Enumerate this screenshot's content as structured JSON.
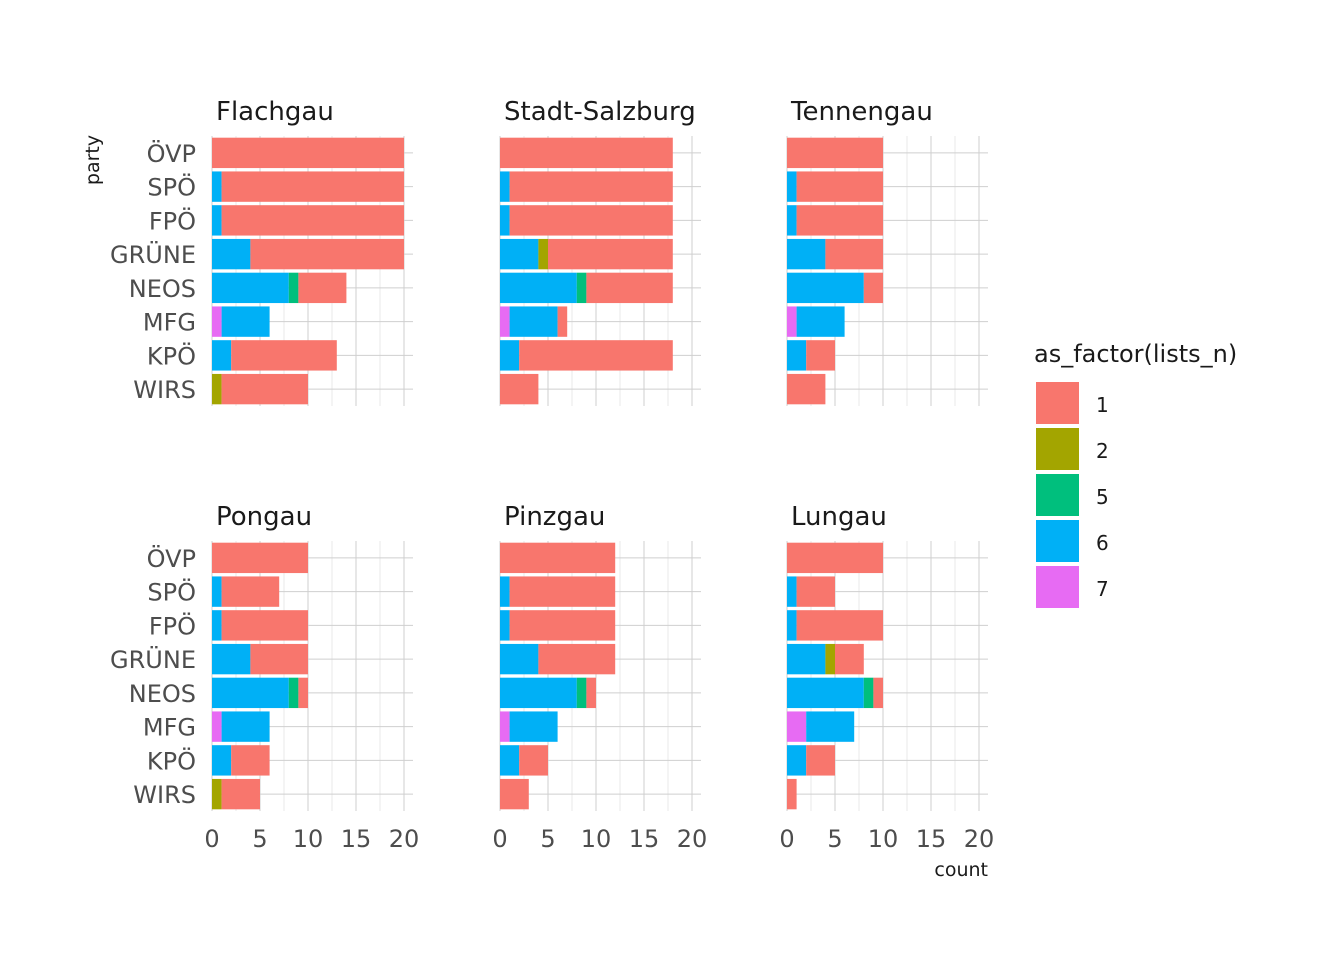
{
  "chart_data": {
    "type": "bar",
    "orientation": "horizontal",
    "stacked": true,
    "xlabel": "count",
    "ylabel": "party",
    "xlim": [
      0,
      21
    ],
    "xticks": [
      "0",
      "5",
      "10",
      "15",
      "20"
    ],
    "grid": true,
    "legend": {
      "title": "as_factor(lists_n)",
      "position": "right",
      "entries": [
        {
          "key": "1",
          "label": "1",
          "color": "#F8766D"
        },
        {
          "key": "2",
          "label": "2",
          "color": "#A3A500"
        },
        {
          "key": "5",
          "label": "5",
          "color": "#00BF7D"
        },
        {
          "key": "6",
          "label": "6",
          "color": "#00B0F6"
        },
        {
          "key": "7",
          "label": "7",
          "color": "#E76BF3"
        }
      ]
    },
    "categories": [
      "ÖVP",
      "SPÖ",
      "FPÖ",
      "GRÜNE",
      "NEOS",
      "MFG",
      "KPÖ",
      "WIRS"
    ],
    "panels": [
      {
        "title": "Flachgau",
        "bars": {
          "ÖVP": [
            {
              "key": "1",
              "value": 20
            }
          ],
          "SPÖ": [
            {
              "key": "6",
              "value": 1
            },
            {
              "key": "1",
              "value": 19
            }
          ],
          "FPÖ": [
            {
              "key": "6",
              "value": 1
            },
            {
              "key": "1",
              "value": 19
            }
          ],
          "GRÜNE": [
            {
              "key": "6",
              "value": 4
            },
            {
              "key": "1",
              "value": 16
            }
          ],
          "NEOS": [
            {
              "key": "6",
              "value": 8
            },
            {
              "key": "5",
              "value": 1
            },
            {
              "key": "1",
              "value": 5
            }
          ],
          "MFG": [
            {
              "key": "7",
              "value": 1
            },
            {
              "key": "6",
              "value": 5
            }
          ],
          "KPÖ": [
            {
              "key": "6",
              "value": 2
            },
            {
              "key": "1",
              "value": 11
            }
          ],
          "WIRS": [
            {
              "key": "2",
              "value": 1
            },
            {
              "key": "1",
              "value": 9
            }
          ]
        }
      },
      {
        "title": "Stadt-Salzburg",
        "bars": {
          "ÖVP": [
            {
              "key": "1",
              "value": 18
            }
          ],
          "SPÖ": [
            {
              "key": "6",
              "value": 1
            },
            {
              "key": "1",
              "value": 17
            }
          ],
          "FPÖ": [
            {
              "key": "6",
              "value": 1
            },
            {
              "key": "1",
              "value": 17
            }
          ],
          "GRÜNE": [
            {
              "key": "6",
              "value": 4
            },
            {
              "key": "2",
              "value": 1
            },
            {
              "key": "1",
              "value": 13
            }
          ],
          "NEOS": [
            {
              "key": "6",
              "value": 8
            },
            {
              "key": "5",
              "value": 1
            },
            {
              "key": "1",
              "value": 9
            }
          ],
          "MFG": [
            {
              "key": "7",
              "value": 1
            },
            {
              "key": "6",
              "value": 5
            },
            {
              "key": "1",
              "value": 1
            }
          ],
          "KPÖ": [
            {
              "key": "6",
              "value": 2
            },
            {
              "key": "1",
              "value": 16
            }
          ],
          "WIRS": [
            {
              "key": "1",
              "value": 4
            }
          ]
        }
      },
      {
        "title": "Tennengau",
        "bars": {
          "ÖVP": [
            {
              "key": "1",
              "value": 10
            }
          ],
          "SPÖ": [
            {
              "key": "6",
              "value": 1
            },
            {
              "key": "1",
              "value": 9
            }
          ],
          "FPÖ": [
            {
              "key": "6",
              "value": 1
            },
            {
              "key": "1",
              "value": 9
            }
          ],
          "GRÜNE": [
            {
              "key": "6",
              "value": 4
            },
            {
              "key": "1",
              "value": 6
            }
          ],
          "NEOS": [
            {
              "key": "6",
              "value": 8
            },
            {
              "key": "1",
              "value": 2
            }
          ],
          "MFG": [
            {
              "key": "7",
              "value": 1
            },
            {
              "key": "6",
              "value": 5
            }
          ],
          "KPÖ": [
            {
              "key": "6",
              "value": 2
            },
            {
              "key": "1",
              "value": 3
            }
          ],
          "WIRS": [
            {
              "key": "1",
              "value": 4
            }
          ]
        }
      },
      {
        "title": "Pongau",
        "bars": {
          "ÖVP": [
            {
              "key": "1",
              "value": 10
            }
          ],
          "SPÖ": [
            {
              "key": "6",
              "value": 1
            },
            {
              "key": "1",
              "value": 6
            }
          ],
          "FPÖ": [
            {
              "key": "6",
              "value": 1
            },
            {
              "key": "1",
              "value": 9
            }
          ],
          "GRÜNE": [
            {
              "key": "6",
              "value": 4
            },
            {
              "key": "1",
              "value": 6
            }
          ],
          "NEOS": [
            {
              "key": "6",
              "value": 8
            },
            {
              "key": "5",
              "value": 1
            },
            {
              "key": "1",
              "value": 1
            }
          ],
          "MFG": [
            {
              "key": "7",
              "value": 1
            },
            {
              "key": "6",
              "value": 5
            }
          ],
          "KPÖ": [
            {
              "key": "6",
              "value": 2
            },
            {
              "key": "1",
              "value": 4
            }
          ],
          "WIRS": [
            {
              "key": "2",
              "value": 1
            },
            {
              "key": "1",
              "value": 4
            }
          ]
        }
      },
      {
        "title": "Pinzgau",
        "bars": {
          "ÖVP": [
            {
              "key": "1",
              "value": 12
            }
          ],
          "SPÖ": [
            {
              "key": "6",
              "value": 1
            },
            {
              "key": "1",
              "value": 11
            }
          ],
          "FPÖ": [
            {
              "key": "6",
              "value": 1
            },
            {
              "key": "1",
              "value": 11
            }
          ],
          "GRÜNE": [
            {
              "key": "6",
              "value": 4
            },
            {
              "key": "1",
              "value": 8
            }
          ],
          "NEOS": [
            {
              "key": "6",
              "value": 8
            },
            {
              "key": "5",
              "value": 1
            },
            {
              "key": "1",
              "value": 1
            }
          ],
          "MFG": [
            {
              "key": "7",
              "value": 1
            },
            {
              "key": "6",
              "value": 5
            }
          ],
          "KPÖ": [
            {
              "key": "6",
              "value": 2
            },
            {
              "key": "1",
              "value": 3
            }
          ],
          "WIRS": [
            {
              "key": "1",
              "value": 3
            }
          ]
        }
      },
      {
        "title": "Lungau",
        "bars": {
          "ÖVP": [
            {
              "key": "1",
              "value": 10
            }
          ],
          "SPÖ": [
            {
              "key": "6",
              "value": 1
            },
            {
              "key": "1",
              "value": 4
            }
          ],
          "FPÖ": [
            {
              "key": "6",
              "value": 1
            },
            {
              "key": "1",
              "value": 9
            }
          ],
          "GRÜNE": [
            {
              "key": "6",
              "value": 4
            },
            {
              "key": "2",
              "value": 1
            },
            {
              "key": "1",
              "value": 3
            }
          ],
          "NEOS": [
            {
              "key": "6",
              "value": 8
            },
            {
              "key": "5",
              "value": 1
            },
            {
              "key": "1",
              "value": 1
            }
          ],
          "MFG": [
            {
              "key": "7",
              "value": 2
            },
            {
              "key": "6",
              "value": 5
            }
          ],
          "KPÖ": [
            {
              "key": "6",
              "value": 2
            },
            {
              "key": "1",
              "value": 3
            }
          ],
          "WIRS": [
            {
              "key": "1",
              "value": 1
            }
          ]
        }
      }
    ]
  }
}
